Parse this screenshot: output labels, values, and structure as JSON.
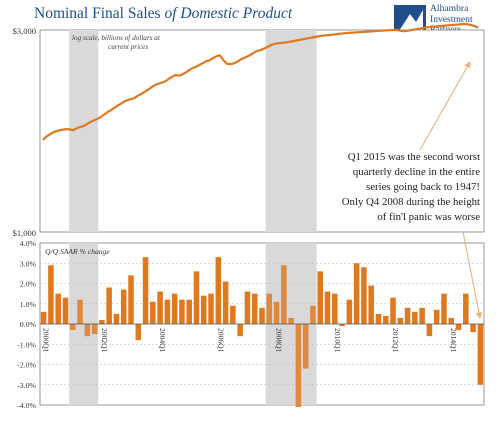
{
  "title": {
    "part1": "Nominal Final Sales ",
    "part2": "of Domestic Product"
  },
  "logo": {
    "line1": "Alhambra",
    "line2": "Investment",
    "line3": "Partners",
    "color": "#1f4e8c"
  },
  "chart_data": [
    {
      "type": "line",
      "note": "log scale, billions of dollars at current prices",
      "yscale": "log",
      "ylim": [
        1000,
        3000
      ],
      "yticks": [
        "$3,000",
        "$1,000"
      ],
      "x_start": "2000 Q1",
      "x_end": "2015 Q1",
      "series": [
        {
          "values": [
            1650,
            1680,
            1700,
            1720,
            1730,
            1740,
            1745,
            1750,
            1745,
            1740,
            1760,
            1770,
            1780,
            1800,
            1820,
            1835,
            1850,
            1870,
            1895,
            1920,
            1940,
            1965,
            1990,
            2010,
            2035,
            2050,
            2060,
            2075,
            2100,
            2120,
            2145,
            2170,
            2200,
            2225,
            2240,
            2255,
            2270,
            2300,
            2325,
            2350,
            2340,
            2355,
            2380,
            2410,
            2440,
            2455,
            2480,
            2505,
            2530,
            2545,
            2575,
            2600,
            2615,
            2550,
            2500,
            2490,
            2500,
            2520,
            2550,
            2575,
            2595,
            2620,
            2650,
            2675,
            2690,
            2710,
            2735,
            2760,
            2780,
            2790,
            2795,
            2800,
            2810,
            2818,
            2828,
            2838,
            2848,
            2858,
            2868,
            2878,
            2888,
            2898,
            2908,
            2913,
            2918,
            2923,
            2930,
            2938,
            2942,
            2950,
            2953,
            2957,
            2961,
            2965,
            2968,
            2972,
            2976,
            2980,
            2984,
            2988,
            2991,
            2994,
            2997,
            3000,
            3002,
            2990,
            2980,
            2985,
            2995,
            3005,
            3015,
            3025,
            3035,
            3044,
            3050,
            3055,
            3060,
            3066,
            3070,
            3076,
            3081,
            3085,
            3090,
            3095,
            3100,
            3093,
            3082,
            3065,
            3040
          ]
        }
      ],
      "color": "#e0781e",
      "shaded_ranges": [
        [
          "2001 Q1",
          "2001 Q4"
        ],
        [
          "2007 Q4",
          "2009 Q2"
        ]
      ]
    },
    {
      "type": "bar",
      "ylabel": "Q/Q SAAR % change",
      "ylim": [
        -4,
        4
      ],
      "yticks": [
        "4.0%",
        "3.0%",
        "2.0%",
        "1.0%",
        "0.0%",
        "-1.0%",
        "-2.0%",
        "-3.0%",
        "-4.0%"
      ],
      "categories": [
        "2000 Q1",
        "2000 Q2",
        "2000 Q3",
        "2000 Q4",
        "2001 Q1",
        "2001 Q2",
        "2001 Q3",
        "2001 Q4",
        "2002 Q1",
        "2002 Q2",
        "2002 Q3",
        "2002 Q4",
        "2003 Q1",
        "2003 Q2",
        "2003 Q3",
        "2003 Q4",
        "2004 Q1",
        "2004 Q2",
        "2004 Q3",
        "2004 Q4",
        "2005 Q1",
        "2005 Q2",
        "2005 Q3",
        "2005 Q4",
        "2006 Q1",
        "2006 Q2",
        "2006 Q3",
        "2006 Q4",
        "2007 Q1",
        "2007 Q2",
        "2007 Q3",
        "2007 Q4",
        "2008 Q1",
        "2008 Q2",
        "2008 Q3",
        "2008 Q4",
        "2009 Q1",
        "2009 Q2",
        "2009 Q3",
        "2009 Q4",
        "2010 Q1",
        "2010 Q2",
        "2010 Q3",
        "2010 Q4",
        "2011 Q1",
        "2011 Q2",
        "2011 Q3",
        "2011 Q4",
        "2012 Q1",
        "2012 Q2",
        "2012 Q3",
        "2012 Q4",
        "2013 Q1",
        "2013 Q2",
        "2013 Q3",
        "2013 Q4",
        "2014 Q1",
        "2014 Q2",
        "2014 Q3",
        "2014 Q4",
        "2015 Q1"
      ],
      "values": [
        0.6,
        2.9,
        1.5,
        1.3,
        -0.3,
        1.2,
        -0.6,
        -0.5,
        0.2,
        1.8,
        0.5,
        1.7,
        2.4,
        -0.8,
        3.3,
        1.1,
        1.6,
        1.2,
        1.5,
        1.2,
        1.2,
        2.6,
        1.4,
        1.5,
        3.3,
        2.1,
        0.9,
        -0.6,
        1.6,
        1.5,
        0.8,
        1.5,
        1.1,
        2.9,
        0.3,
        -4.1,
        -2.2,
        0.9,
        2.6,
        1.6,
        1.5,
        -0.1,
        1.2,
        3.0,
        2.8,
        1.9,
        0.5,
        0.4,
        1.3,
        0.3,
        0.8,
        0.6,
        0.8,
        -0.6,
        0.7,
        1.5,
        0.3,
        -0.3,
        1.5,
        -0.4,
        -3.0
      ],
      "labels": [
        "2000Q1",
        "2002Q1",
        "2004Q1",
        "2006Q1",
        "2008Q1",
        "2010Q1",
        "2012Q1",
        "2014Q1"
      ],
      "label_positions": [
        0,
        8,
        16,
        24,
        32,
        40,
        48,
        56
      ],
      "color": "#e0781e",
      "shaded_ranges": [
        [
          4,
          7
        ],
        [
          31,
          37
        ]
      ]
    }
  ],
  "annotation": [
    "Q1 2015 was the second worst",
    "quarterly decline in the entire",
    "series going back to 1947!",
    "Only Q4 2008 during the height",
    "of fin'l panic was worse"
  ]
}
